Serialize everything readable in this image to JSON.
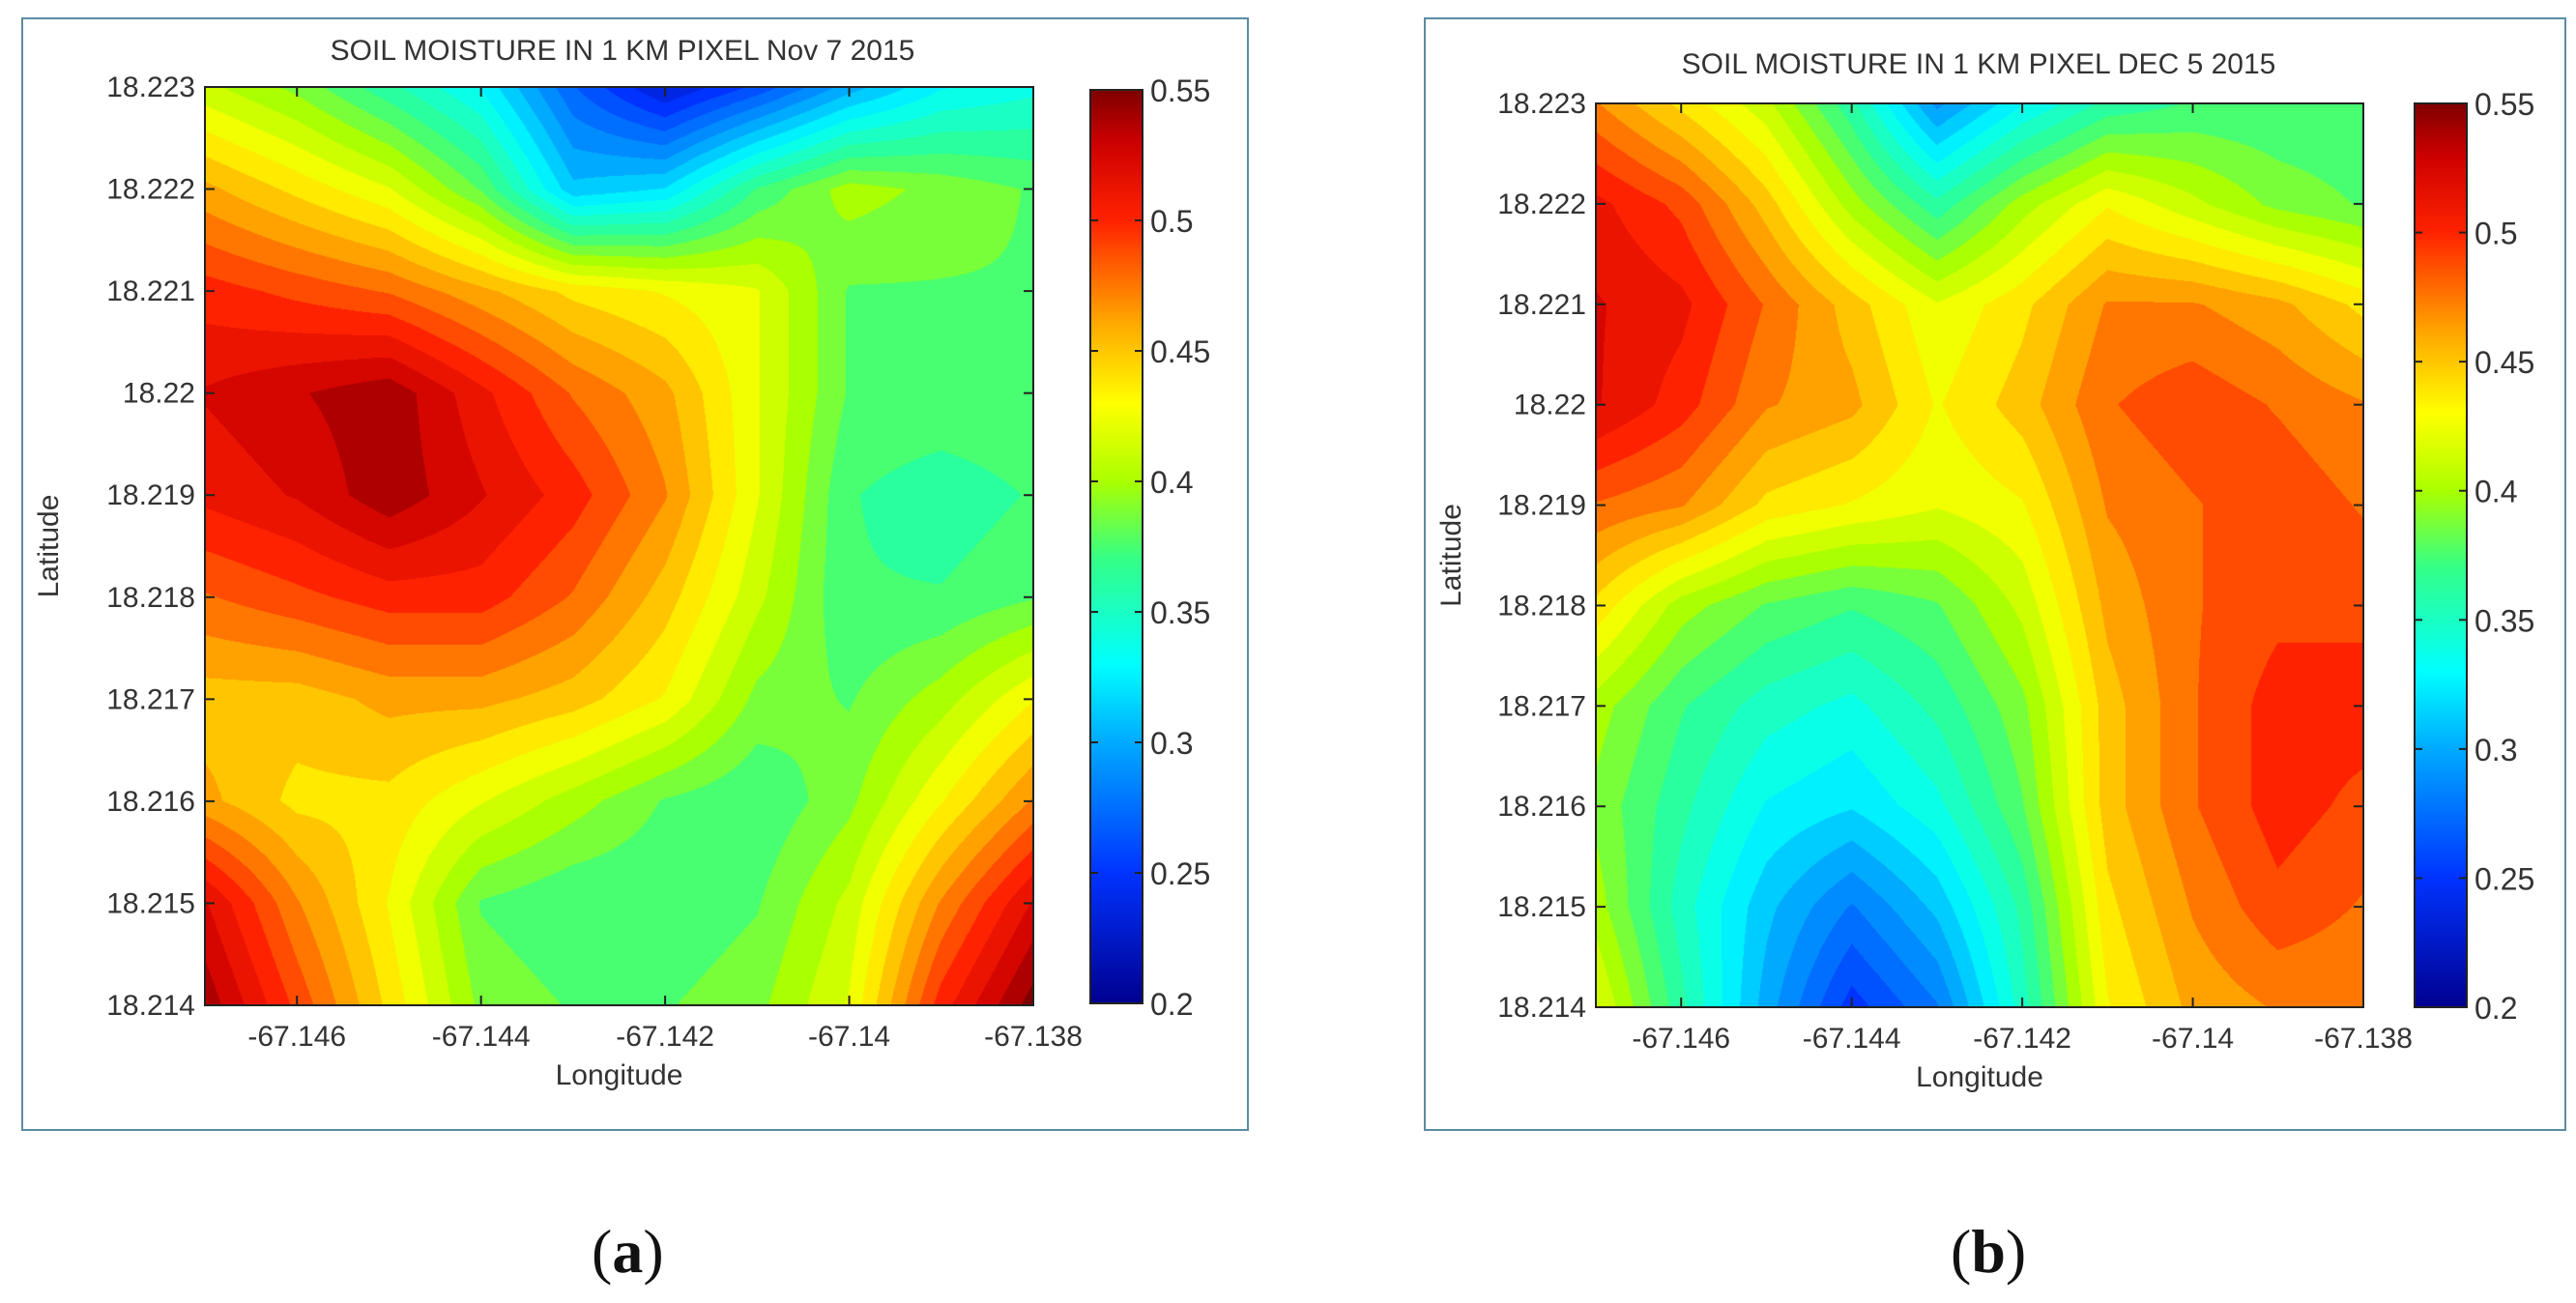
{
  "figure": {
    "caption_a": "a",
    "caption_b": "b"
  },
  "colorbar": {
    "ticks": [
      "0.55",
      "0.5",
      "0.45",
      "0.4",
      "0.35",
      "0.3",
      "0.25",
      "0.2"
    ],
    "stops": [
      {
        "v": 0.2,
        "color": "#00008f"
      },
      {
        "v": 0.25,
        "color": "#0033ff"
      },
      {
        "v": 0.3,
        "color": "#00aaff"
      },
      {
        "v": 0.33,
        "color": "#00ffff"
      },
      {
        "v": 0.37,
        "color": "#33ff88"
      },
      {
        "v": 0.4,
        "color": "#aaff00"
      },
      {
        "v": 0.43,
        "color": "#ffff00"
      },
      {
        "v": 0.46,
        "color": "#ffaa00"
      },
      {
        "v": 0.5,
        "color": "#ff2200"
      },
      {
        "v": 0.53,
        "color": "#cc0000"
      },
      {
        "v": 0.55,
        "color": "#7f0000"
      }
    ]
  },
  "chart_data": [
    {
      "type": "heatmap",
      "title": "SOIL MOISTURE IN 1 KM PIXEL Nov 7 2015",
      "xlabel": "Longitude",
      "ylabel": "Latitude",
      "xlim": [
        -67.147,
        -67.138
      ],
      "ylim": [
        18.214,
        18.223
      ],
      "clim": [
        0.2,
        0.55
      ],
      "x_ticks": [
        "-67.146",
        "-67.144",
        "-67.142",
        "-67.14",
        "-67.138"
      ],
      "y_ticks": [
        "18.223",
        "18.222",
        "18.221",
        "18.22",
        "18.219",
        "18.218",
        "18.217",
        "18.216",
        "18.215",
        "18.214"
      ],
      "x": [
        -67.147,
        -67.146,
        -67.145,
        -67.144,
        -67.143,
        -67.142,
        -67.141,
        -67.14,
        -67.139,
        -67.138
      ],
      "y": [
        18.223,
        18.222,
        18.221,
        18.22,
        18.219,
        18.218,
        18.217,
        18.216,
        18.215,
        18.214
      ],
      "z": [
        [
          0.41,
          0.39,
          0.36,
          0.33,
          0.27,
          0.23,
          0.26,
          0.3,
          0.33,
          0.34
        ],
        [
          0.46,
          0.44,
          0.42,
          0.38,
          0.31,
          0.32,
          0.37,
          0.4,
          0.39,
          0.38
        ],
        [
          0.5,
          0.49,
          0.48,
          0.46,
          0.44,
          0.43,
          0.42,
          0.38,
          0.38,
          0.38
        ],
        [
          0.52,
          0.53,
          0.54,
          0.51,
          0.48,
          0.46,
          0.42,
          0.38,
          0.38,
          0.38
        ],
        [
          0.51,
          0.52,
          0.54,
          0.52,
          0.5,
          0.47,
          0.42,
          0.37,
          0.36,
          0.37
        ],
        [
          0.48,
          0.49,
          0.5,
          0.5,
          0.48,
          0.45,
          0.41,
          0.37,
          0.37,
          0.38
        ],
        [
          0.45,
          0.45,
          0.46,
          0.46,
          0.45,
          0.43,
          0.39,
          0.38,
          0.4,
          0.43
        ],
        [
          0.46,
          0.44,
          0.44,
          0.42,
          0.4,
          0.38,
          0.37,
          0.39,
          0.43,
          0.47
        ],
        [
          0.52,
          0.47,
          0.43,
          0.38,
          0.37,
          0.37,
          0.38,
          0.41,
          0.47,
          0.52
        ],
        [
          0.54,
          0.49,
          0.44,
          0.39,
          0.38,
          0.38,
          0.39,
          0.42,
          0.5,
          0.55
        ]
      ]
    },
    {
      "type": "heatmap",
      "title": "SOIL MOISTURE IN 1 KM PIXEL DEC 5 2015",
      "xlabel": "Longitude",
      "ylabel": "Latitude",
      "xlim": [
        -67.147,
        -67.138
      ],
      "ylim": [
        18.214,
        18.223
      ],
      "clim": [
        0.2,
        0.55
      ],
      "x_ticks": [
        "-67.146",
        "-67.144",
        "-67.142",
        "-67.14",
        "-67.138"
      ],
      "y_ticks": [
        "18.223",
        "18.222",
        "18.221",
        "18.22",
        "18.219",
        "18.218",
        "18.217",
        "18.216",
        "18.215",
        "18.214"
      ],
      "x": [
        -67.147,
        -67.146,
        -67.145,
        -67.144,
        -67.143,
        -67.142,
        -67.141,
        -67.14,
        -67.139,
        -67.138
      ],
      "y": [
        18.223,
        18.222,
        18.221,
        18.22,
        18.219,
        18.218,
        18.217,
        18.216,
        18.215,
        18.214
      ],
      "z": [
        [
          0.47,
          0.44,
          0.41,
          0.36,
          0.29,
          0.33,
          0.36,
          0.37,
          0.37,
          0.37
        ],
        [
          0.51,
          0.49,
          0.45,
          0.4,
          0.36,
          0.4,
          0.43,
          0.41,
          0.39,
          0.38
        ],
        [
          0.52,
          0.51,
          0.48,
          0.45,
          0.42,
          0.44,
          0.47,
          0.47,
          0.46,
          0.44
        ],
        [
          0.52,
          0.5,
          0.47,
          0.46,
          0.43,
          0.45,
          0.48,
          0.49,
          0.48,
          0.47
        ],
        [
          0.48,
          0.47,
          0.44,
          0.43,
          0.42,
          0.43,
          0.47,
          0.48,
          0.49,
          0.48
        ],
        [
          0.44,
          0.4,
          0.38,
          0.37,
          0.38,
          0.41,
          0.46,
          0.48,
          0.49,
          0.49
        ],
        [
          0.4,
          0.37,
          0.35,
          0.34,
          0.36,
          0.39,
          0.45,
          0.48,
          0.5,
          0.5
        ],
        [
          0.39,
          0.36,
          0.33,
          0.32,
          0.34,
          0.38,
          0.45,
          0.48,
          0.5,
          0.49
        ],
        [
          0.4,
          0.35,
          0.31,
          0.28,
          0.31,
          0.36,
          0.44,
          0.47,
          0.49,
          0.48
        ],
        [
          0.42,
          0.36,
          0.3,
          0.25,
          0.28,
          0.35,
          0.43,
          0.46,
          0.47,
          0.47
        ]
      ]
    }
  ]
}
